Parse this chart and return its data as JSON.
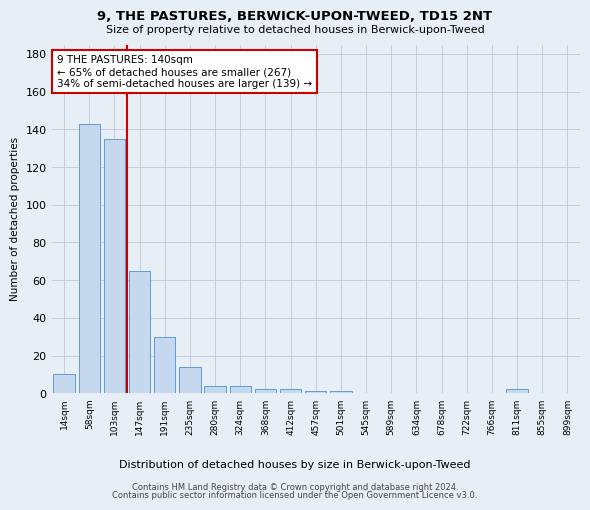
{
  "title": "9, THE PASTURES, BERWICK-UPON-TWEED, TD15 2NT",
  "subtitle": "Size of property relative to detached houses in Berwick-upon-Tweed",
  "xlabel": "Distribution of detached houses by size in Berwick-upon-Tweed",
  "ylabel": "Number of detached properties",
  "bar_color": "#c5d8ed",
  "bar_edge_color": "#5b9bd5",
  "grid_color": "#c0c8d8",
  "background_color": "#e8eef5",
  "annotation_box_color": "#ffffff",
  "annotation_border_color": "#cc0000",
  "vline_color": "#cc0000",
  "categories": [
    "14sqm",
    "58sqm",
    "103sqm",
    "147sqm",
    "191sqm",
    "235sqm",
    "280sqm",
    "324sqm",
    "368sqm",
    "412sqm",
    "457sqm",
    "501sqm",
    "545sqm",
    "589sqm",
    "634sqm",
    "678sqm",
    "722sqm",
    "766sqm",
    "811sqm",
    "855sqm",
    "899sqm"
  ],
  "values": [
    10,
    143,
    135,
    65,
    30,
    14,
    4,
    4,
    2,
    2,
    1,
    1,
    0,
    0,
    0,
    0,
    0,
    0,
    2,
    0,
    0
  ],
  "vline_x": 2.5,
  "annotation_text_line1": "9 THE PASTURES: 140sqm",
  "annotation_text_line2": "← 65% of detached houses are smaller (267)",
  "annotation_text_line3": "34% of semi-detached houses are larger (139) →",
  "ylim": [
    0,
    185
  ],
  "yticks": [
    0,
    20,
    40,
    60,
    80,
    100,
    120,
    140,
    160,
    180
  ],
  "footer_line1": "Contains HM Land Registry data © Crown copyright and database right 2024.",
  "footer_line2": "Contains public sector information licensed under the Open Government Licence v3.0."
}
